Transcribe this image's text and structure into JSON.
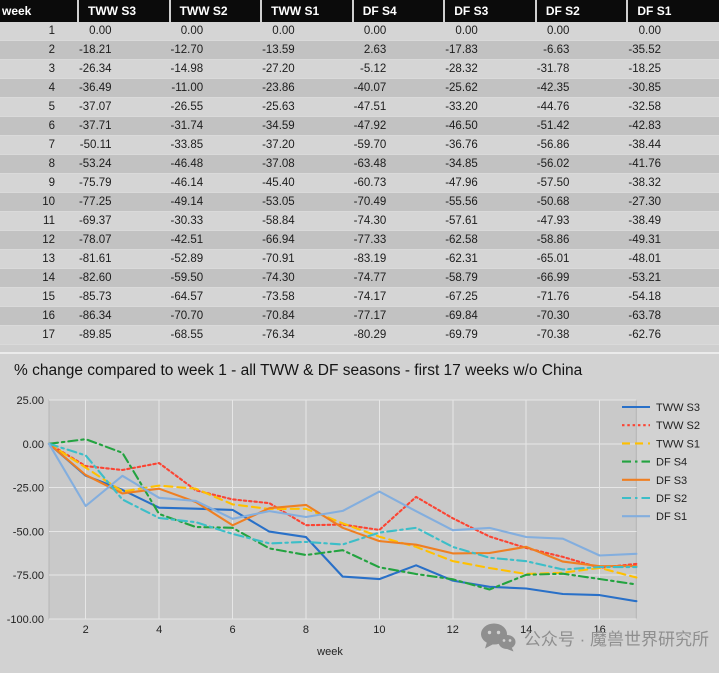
{
  "table": {
    "columns": [
      "week",
      "TWW S3",
      "TWW S2",
      "TWW S1",
      "DF S4",
      "DF S3",
      "DF S2",
      "DF S1"
    ],
    "rows": [
      [
        "1",
        "0.00",
        "0.00",
        "0.00",
        "0.00",
        "0.00",
        "0.00",
        "0.00"
      ],
      [
        "2",
        "-18.21",
        "-12.70",
        "-13.59",
        "2.63",
        "-17.83",
        "-6.63",
        "-35.52"
      ],
      [
        "3",
        "-26.34",
        "-14.98",
        "-27.20",
        "-5.12",
        "-28.32",
        "-31.78",
        "-18.25"
      ],
      [
        "4",
        "-36.49",
        "-11.00",
        "-23.86",
        "-40.07",
        "-25.62",
        "-42.35",
        "-30.85"
      ],
      [
        "5",
        "-37.07",
        "-26.55",
        "-25.63",
        "-47.51",
        "-33.20",
        "-44.76",
        "-32.58"
      ],
      [
        "6",
        "-37.71",
        "-31.74",
        "-34.59",
        "-47.92",
        "-46.50",
        "-51.42",
        "-42.83"
      ],
      [
        "7",
        "-50.11",
        "-33.85",
        "-37.20",
        "-59.70",
        "-36.76",
        "-56.86",
        "-38.44"
      ],
      [
        "8",
        "-53.24",
        "-46.48",
        "-37.08",
        "-63.48",
        "-34.85",
        "-56.02",
        "-41.76"
      ],
      [
        "9",
        "-75.79",
        "-46.14",
        "-45.40",
        "-60.73",
        "-47.96",
        "-57.50",
        "-38.32"
      ],
      [
        "10",
        "-77.25",
        "-49.14",
        "-53.05",
        "-70.49",
        "-55.56",
        "-50.68",
        "-27.30"
      ],
      [
        "11",
        "-69.37",
        "-30.33",
        "-58.84",
        "-74.30",
        "-57.61",
        "-47.93",
        "-38.49"
      ],
      [
        "12",
        "-78.07",
        "-42.51",
        "-66.94",
        "-77.33",
        "-62.58",
        "-58.86",
        "-49.31"
      ],
      [
        "13",
        "-81.61",
        "-52.89",
        "-70.91",
        "-83.19",
        "-62.31",
        "-65.01",
        "-48.01"
      ],
      [
        "14",
        "-82.60",
        "-59.50",
        "-74.30",
        "-74.77",
        "-58.79",
        "-66.99",
        "-53.21"
      ],
      [
        "15",
        "-85.73",
        "-64.57",
        "-73.58",
        "-74.17",
        "-67.25",
        "-71.76",
        "-54.18"
      ],
      [
        "16",
        "-86.34",
        "-70.70",
        "-70.84",
        "-77.17",
        "-69.84",
        "-70.30",
        "-63.78"
      ],
      [
        "17",
        "-89.85",
        "-68.55",
        "-76.34",
        "-80.29",
        "-69.79",
        "-70.38",
        "-62.76"
      ]
    ]
  },
  "chart_data": {
    "type": "line",
    "title": "% change compared to week 1 - all TWW & DF seasons - first 17 weeks w/o China",
    "xlabel": "week",
    "x": [
      1,
      2,
      3,
      4,
      5,
      6,
      7,
      8,
      9,
      10,
      11,
      12,
      13,
      14,
      15,
      16,
      17
    ],
    "xticks": [
      2,
      4,
      6,
      8,
      10,
      12,
      14,
      16
    ],
    "yticks": [
      25,
      0,
      -25,
      -50,
      -75,
      -100
    ],
    "ytick_labels": [
      "25.00",
      "0.00",
      "-25.00",
      "-50.00",
      "-75.00",
      "-100.00"
    ],
    "ylim": [
      -100,
      25
    ],
    "grid": true,
    "legend_position": "right",
    "series": [
      {
        "name": "TWW S3",
        "color": "#2970c8",
        "line_style": "solid",
        "values": [
          0,
          -18.21,
          -26.34,
          -36.49,
          -37.07,
          -37.71,
          -50.11,
          -53.24,
          -75.79,
          -77.25,
          -69.37,
          -78.07,
          -81.61,
          -82.6,
          -85.73,
          -86.34,
          -89.85
        ]
      },
      {
        "name": "TWW S2",
        "color": "#fb4433",
        "line_style": "dot",
        "values": [
          0,
          -12.7,
          -14.98,
          -11.0,
          -26.55,
          -31.74,
          -33.85,
          -46.48,
          -46.14,
          -49.14,
          -30.33,
          -42.51,
          -52.89,
          -59.5,
          -64.57,
          -70.7,
          -68.55
        ]
      },
      {
        "name": "TWW S1",
        "color": "#ffc000",
        "line_style": "dash",
        "values": [
          0,
          -13.59,
          -27.2,
          -23.86,
          -25.63,
          -34.59,
          -37.2,
          -37.08,
          -45.4,
          -53.05,
          -58.84,
          -66.94,
          -70.91,
          -74.3,
          -73.58,
          -70.84,
          -76.34
        ]
      },
      {
        "name": "DF S4",
        "color": "#23a340",
        "line_style": "dashdot",
        "values": [
          0,
          2.63,
          -5.12,
          -40.07,
          -47.51,
          -47.92,
          -59.7,
          -63.48,
          -60.73,
          -70.49,
          -74.3,
          -77.33,
          -83.19,
          -74.77,
          -74.17,
          -77.17,
          -80.29
        ]
      },
      {
        "name": "DF S3",
        "color": "#ef7f22",
        "line_style": "solid",
        "values": [
          0,
          -17.83,
          -28.32,
          -25.62,
          -33.2,
          -46.5,
          -36.76,
          -34.85,
          -47.96,
          -55.56,
          -57.61,
          -62.58,
          -62.31,
          -58.79,
          -67.25,
          -69.84,
          -69.79
        ]
      },
      {
        "name": "DF S2",
        "color": "#3cbec8",
        "line_style": "dashdot",
        "values": [
          0,
          -6.63,
          -31.78,
          -42.35,
          -44.76,
          -51.42,
          -56.86,
          -56.02,
          -57.5,
          -50.68,
          -47.93,
          -58.86,
          -65.01,
          -66.99,
          -71.76,
          -70.3,
          -70.38
        ]
      },
      {
        "name": "DF S1",
        "color": "#83aede",
        "line_style": "solid",
        "values": [
          0,
          -35.52,
          -18.25,
          -30.85,
          -32.58,
          -42.83,
          -38.44,
          -41.76,
          -38.32,
          -27.3,
          -38.49,
          -49.31,
          -48.01,
          -53.21,
          -54.18,
          -63.78,
          -62.76
        ]
      }
    ]
  },
  "watermark": {
    "text": "公众号 · 魔兽世界研究所"
  },
  "colors": {
    "table_header_bg": "#0b0b0b",
    "row_light": "#d5d5d5",
    "row_dark": "#c2c2c2",
    "plot_bg": "#c9c9c9",
    "gridline": "#e6e6e6"
  }
}
